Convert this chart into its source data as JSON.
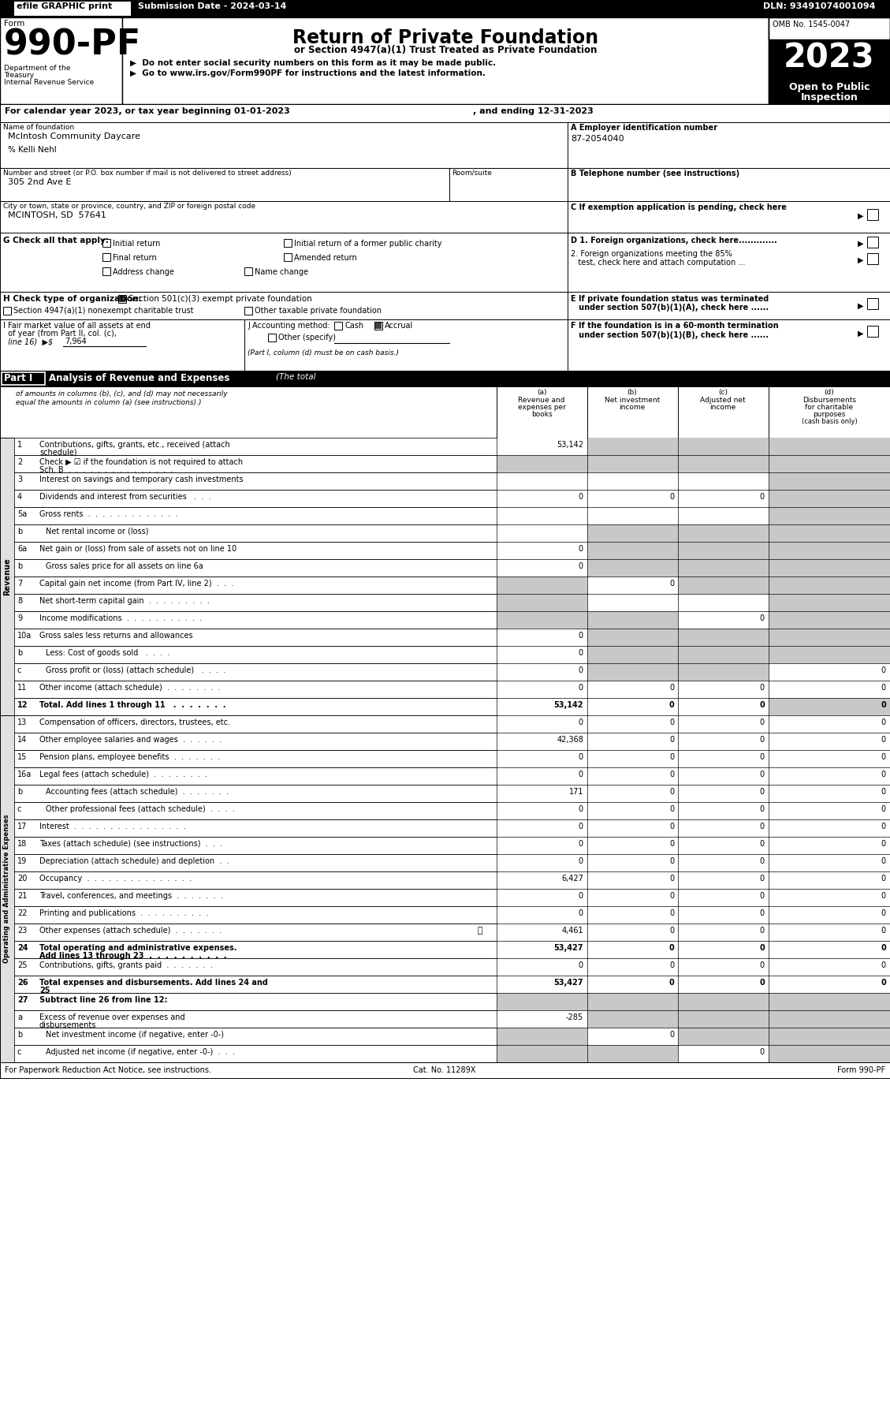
{
  "efile_label": "efile GRAPHIC print",
  "submission_date": "Submission Date - 2024-03-14",
  "dln": "DLN: 93491074001094",
  "omb": "OMB No. 1545-0047",
  "year": "2023",
  "open_to_public": "Open to Public\nInspection",
  "dept_label": "Department of the\nTreasury\nInternal Revenue Service",
  "form_label": "Form",
  "form_number": "990-PF",
  "title_main": "Return of Private Foundation",
  "title_sub": "or Section 4947(a)(1) Trust Treated as Private Foundation",
  "bullet1": "▶  Do not enter social security numbers on this form as it may be made public.",
  "bullet2": "▶  Go to www.irs.gov/Form990PF for instructions and the latest information.",
  "calendar_line": "For calendar year 2023, or tax year beginning 01-01-2023",
  "ending_line": ", and ending 12-31-2023",
  "foundation_name_label": "Name of foundation",
  "foundation_name": "McIntosh Community Daycare",
  "care_of": "% Kelli Nehl",
  "ein_label": "A Employer identification number",
  "ein": "87-2054040",
  "address_label": "Number and street (or P.O. box number if mail is not delivered to street address)",
  "address": "305 2nd Ave E",
  "room_suite_label": "Room/suite",
  "phone_label": "B Telephone number (see instructions)",
  "city_label": "City or town, state or province, country, and ZIP or foreign postal code",
  "city": "MCINTOSH, SD  57641",
  "exemption_label": "C If exemption application is pending, check here",
  "g_label": "G Check all that apply:",
  "g_options": [
    "Initial return",
    "Initial return of a former public charity",
    "Final return",
    "Amended return",
    "Address change",
    "Name change"
  ],
  "d1_label": "D 1. Foreign organizations, check here............. ",
  "d2_line1": "2. Foreign organizations meeting the 85%",
  "d2_line2": "   test, check here and attach computation ...",
  "e_line1": "E If private foundation status was terminated",
  "e_line2": "   under section 507(b)(1)(A), check here ......",
  "h_label": "H Check type of organization:",
  "h_checked": "Section 501(c)(3) exempt private foundation",
  "h_option2": "Section 4947(a)(1) nonexempt charitable trust",
  "h_option3": "Other taxable private foundation",
  "i_line1": "I Fair market value of all assets at end",
  "i_line2": "  of year (from Part II, col. (c),",
  "i_line3": "  line 16)  ▶$",
  "i_value": "7,964",
  "j_label": "J Accounting method:",
  "j_other": "Other (specify)",
  "j_note": "(Part I, column (d) must be on cash basis.)",
  "f_line1": "F If the foundation is in a 60-month termination",
  "f_line2": "   under section 507(b)(1)(B), check here ......",
  "part1_title": "Part I",
  "part1_desc": "Analysis of Revenue and Expenses",
  "part1_italic": "(The total",
  "part1_note_line2": "of amounts in columns (b), (c), and (d) may not necessarily",
  "part1_note_line3": "equal the amounts in column (a) (see instructions).)",
  "col_a_label": "(a)\nRevenue and\nexpenses per\nbooks",
  "col_b_label": "(b)\nNet investment\nincome",
  "col_c_label": "(c)\nAdjusted net\nincome",
  "col_d_label": "(d)  Disbursements\nfor charitable\npurposes\n(cash basis only)",
  "rows": [
    {
      "num": "1",
      "label": "Contributions, gifts, grants, etc., received (attach\nschedule)",
      "a": "53,142",
      "b": "",
      "c": "",
      "d": "",
      "gray_a": false,
      "gray_b": true,
      "gray_c": true,
      "gray_d": true
    },
    {
      "num": "2",
      "label": "Check ▶ ☑ if the foundation is not required to attach\nSch. B  .  .  .  .  .  .  .  .  .  .  .  .  .  .  .",
      "a": "",
      "b": "",
      "c": "",
      "d": "",
      "gray_a": true,
      "gray_b": true,
      "gray_c": true,
      "gray_d": true
    },
    {
      "num": "3",
      "label": "Interest on savings and temporary cash investments",
      "a": "",
      "b": "",
      "c": "",
      "d": "",
      "gray_a": false,
      "gray_b": false,
      "gray_c": false,
      "gray_d": true
    },
    {
      "num": "4",
      "label": "Dividends and interest from securities   .  .  .",
      "a": "0",
      "b": "0",
      "c": "0",
      "d": "",
      "gray_a": false,
      "gray_b": false,
      "gray_c": false,
      "gray_d": true
    },
    {
      "num": "5a",
      "label": "Gross rents  .  .  .  .  .  .  .  .  .  .  .  .  .",
      "a": "",
      "b": "",
      "c": "",
      "d": "",
      "gray_a": false,
      "gray_b": false,
      "gray_c": false,
      "gray_d": true
    },
    {
      "num": "b",
      "label": "Net rental income or (loss)",
      "a": "",
      "b": "",
      "c": "",
      "d": "",
      "gray_a": false,
      "gray_b": true,
      "gray_c": true,
      "gray_d": true
    },
    {
      "num": "6a",
      "label": "Net gain or (loss) from sale of assets not on line 10",
      "a": "0",
      "b": "",
      "c": "",
      "d": "",
      "gray_a": false,
      "gray_b": true,
      "gray_c": true,
      "gray_d": true
    },
    {
      "num": "b",
      "label": "Gross sales price for all assets on line 6a",
      "a": "0",
      "b": "",
      "c": "",
      "d": "",
      "gray_a": false,
      "gray_b": true,
      "gray_c": true,
      "gray_d": true
    },
    {
      "num": "7",
      "label": "Capital gain net income (from Part IV, line 2)  .  .  .",
      "a": "",
      "b": "0",
      "c": "",
      "d": "",
      "gray_a": true,
      "gray_b": false,
      "gray_c": true,
      "gray_d": true
    },
    {
      "num": "8",
      "label": "Net short-term capital gain  .  .  .  .  .  .  .  .  .",
      "a": "",
      "b": "",
      "c": "",
      "d": "",
      "gray_a": true,
      "gray_b": false,
      "gray_c": false,
      "gray_d": true
    },
    {
      "num": "9",
      "label": "Income modifications  .  .  .  .  .  .  .  .  .  .  .",
      "a": "",
      "b": "",
      "c": "0",
      "d": "",
      "gray_a": true,
      "gray_b": true,
      "gray_c": false,
      "gray_d": true
    },
    {
      "num": "10a",
      "label": "Gross sales less returns and allowances",
      "a": "0",
      "b": "",
      "c": "",
      "d": "",
      "gray_a": false,
      "gray_b": true,
      "gray_c": true,
      "gray_d": true
    },
    {
      "num": "b",
      "label": "Less: Cost of goods sold   .  .  .  .",
      "a": "0",
      "b": "",
      "c": "",
      "d": "",
      "gray_a": false,
      "gray_b": true,
      "gray_c": true,
      "gray_d": true
    },
    {
      "num": "c",
      "label": "Gross profit or (loss) (attach schedule)   .  .  .  .",
      "a": "0",
      "b": "",
      "c": "",
      "d": "0",
      "gray_a": false,
      "gray_b": true,
      "gray_c": true,
      "gray_d": false
    },
    {
      "num": "11",
      "label": "Other income (attach schedule)  .  .  .  .  .  .  .  .",
      "a": "0",
      "b": "0",
      "c": "0",
      "d": "0",
      "gray_a": false,
      "gray_b": false,
      "gray_c": false,
      "gray_d": false
    },
    {
      "num": "12",
      "label": "Total. Add lines 1 through 11   .  .  .  .  .  .  .",
      "a": "53,142",
      "b": "0",
      "c": "0",
      "d": "0",
      "bold": true,
      "gray_a": false,
      "gray_b": false,
      "gray_c": false,
      "gray_d": true
    },
    {
      "num": "13",
      "label": "Compensation of officers, directors, trustees, etc.",
      "a": "0",
      "b": "0",
      "c": "0",
      "d": "0",
      "gray_a": false,
      "gray_b": false,
      "gray_c": false,
      "gray_d": false
    },
    {
      "num": "14",
      "label": "Other employee salaries and wages  .  .  .  .  .  .",
      "a": "42,368",
      "b": "0",
      "c": "0",
      "d": "0",
      "gray_a": false,
      "gray_b": false,
      "gray_c": false,
      "gray_d": false
    },
    {
      "num": "15",
      "label": "Pension plans, employee benefits  .  .  .  .  .  .  .",
      "a": "0",
      "b": "0",
      "c": "0",
      "d": "0",
      "gray_a": false,
      "gray_b": false,
      "gray_c": false,
      "gray_d": false
    },
    {
      "num": "16a",
      "label": "Legal fees (attach schedule)  .  .  .  .  .  .  .  .",
      "a": "0",
      "b": "0",
      "c": "0",
      "d": "0",
      "gray_a": false,
      "gray_b": false,
      "gray_c": false,
      "gray_d": false
    },
    {
      "num": "b",
      "label": "Accounting fees (attach schedule)  .  .  .  .  .  .  .",
      "a": "171",
      "b": "0",
      "c": "0",
      "d": "0",
      "gray_a": false,
      "gray_b": false,
      "gray_c": false,
      "gray_d": false
    },
    {
      "num": "c",
      "label": "Other professional fees (attach schedule)  .  .  .  .",
      "a": "0",
      "b": "0",
      "c": "0",
      "d": "0",
      "gray_a": false,
      "gray_b": false,
      "gray_c": false,
      "gray_d": false
    },
    {
      "num": "17",
      "label": "Interest  .  .  .  .  .  .  .  .  .  .  .  .  .  .  .  .",
      "a": "0",
      "b": "0",
      "c": "0",
      "d": "0",
      "gray_a": false,
      "gray_b": false,
      "gray_c": false,
      "gray_d": false
    },
    {
      "num": "18",
      "label": "Taxes (attach schedule) (see instructions)  .  .  .",
      "a": "0",
      "b": "0",
      "c": "0",
      "d": "0",
      "gray_a": false,
      "gray_b": false,
      "gray_c": false,
      "gray_d": false
    },
    {
      "num": "19",
      "label": "Depreciation (attach schedule) and depletion  .  .",
      "a": "0",
      "b": "0",
      "c": "0",
      "d": "0",
      "gray_a": false,
      "gray_b": false,
      "gray_c": false,
      "gray_d": false
    },
    {
      "num": "20",
      "label": "Occupancy  .  .  .  .  .  .  .  .  .  .  .  .  .  .  .",
      "a": "6,427",
      "b": "0",
      "c": "0",
      "d": "0",
      "gray_a": false,
      "gray_b": false,
      "gray_c": false,
      "gray_d": false
    },
    {
      "num": "21",
      "label": "Travel, conferences, and meetings  .  .  .  .  .  .  .",
      "a": "0",
      "b": "0",
      "c": "0",
      "d": "0",
      "gray_a": false,
      "gray_b": false,
      "gray_c": false,
      "gray_d": false
    },
    {
      "num": "22",
      "label": "Printing and publications  .  .  .  .  .  .  .  .  .  .",
      "a": "0",
      "b": "0",
      "c": "0",
      "d": "0",
      "gray_a": false,
      "gray_b": false,
      "gray_c": false,
      "gray_d": false
    },
    {
      "num": "23",
      "label": "Other expenses (attach schedule)  .  .  .  .  .  .  .",
      "a": "4,461",
      "b": "0",
      "c": "0",
      "d": "0",
      "icon": true,
      "gray_a": false,
      "gray_b": false,
      "gray_c": false,
      "gray_d": false
    },
    {
      "num": "24",
      "label": "Total operating and administrative expenses.\nAdd lines 13 through 23  .  .  .  .  .  .  .  .  .  .",
      "a": "53,427",
      "b": "0",
      "c": "0",
      "d": "0",
      "bold": true,
      "gray_a": false,
      "gray_b": false,
      "gray_c": false,
      "gray_d": false
    },
    {
      "num": "25",
      "label": "Contributions, gifts, grants paid  .  .  .  .  .  .  .",
      "a": "0",
      "b": "0",
      "c": "0",
      "d": "0",
      "gray_a": false,
      "gray_b": false,
      "gray_c": false,
      "gray_d": false
    },
    {
      "num": "26",
      "label": "Total expenses and disbursements. Add lines 24 and\n25",
      "a": "53,427",
      "b": "0",
      "c": "0",
      "d": "0",
      "bold": true,
      "gray_a": false,
      "gray_b": false,
      "gray_c": false,
      "gray_d": false
    },
    {
      "num": "27",
      "label": "Subtract line 26 from line 12:",
      "a": "",
      "b": "",
      "c": "",
      "d": "",
      "bold": true,
      "gray_a": true,
      "gray_b": true,
      "gray_c": true,
      "gray_d": true
    },
    {
      "num": "a",
      "label": "Excess of revenue over expenses and\ndisbursements",
      "a": "-285",
      "b": "",
      "c": "",
      "d": "",
      "gray_a": false,
      "gray_b": true,
      "gray_c": true,
      "gray_d": true
    },
    {
      "num": "b",
      "label": "Net investment income (if negative, enter -0-)",
      "a": "",
      "b": "0",
      "c": "",
      "d": "",
      "gray_a": true,
      "gray_b": false,
      "gray_c": true,
      "gray_d": true
    },
    {
      "num": "c",
      "label": "Adjusted net income (if negative, enter -0-)  .  .  .",
      "a": "",
      "b": "",
      "c": "0",
      "d": "",
      "gray_a": true,
      "gray_b": true,
      "gray_c": false,
      "gray_d": true
    }
  ],
  "side_label_revenue": "Revenue",
  "side_label_expenses": "Operating and Administrative Expenses",
  "footer_left": "For Paperwork Reduction Act Notice, see instructions.",
  "footer_cat": "Cat. No. 11289X",
  "footer_right": "Form 990-PF"
}
